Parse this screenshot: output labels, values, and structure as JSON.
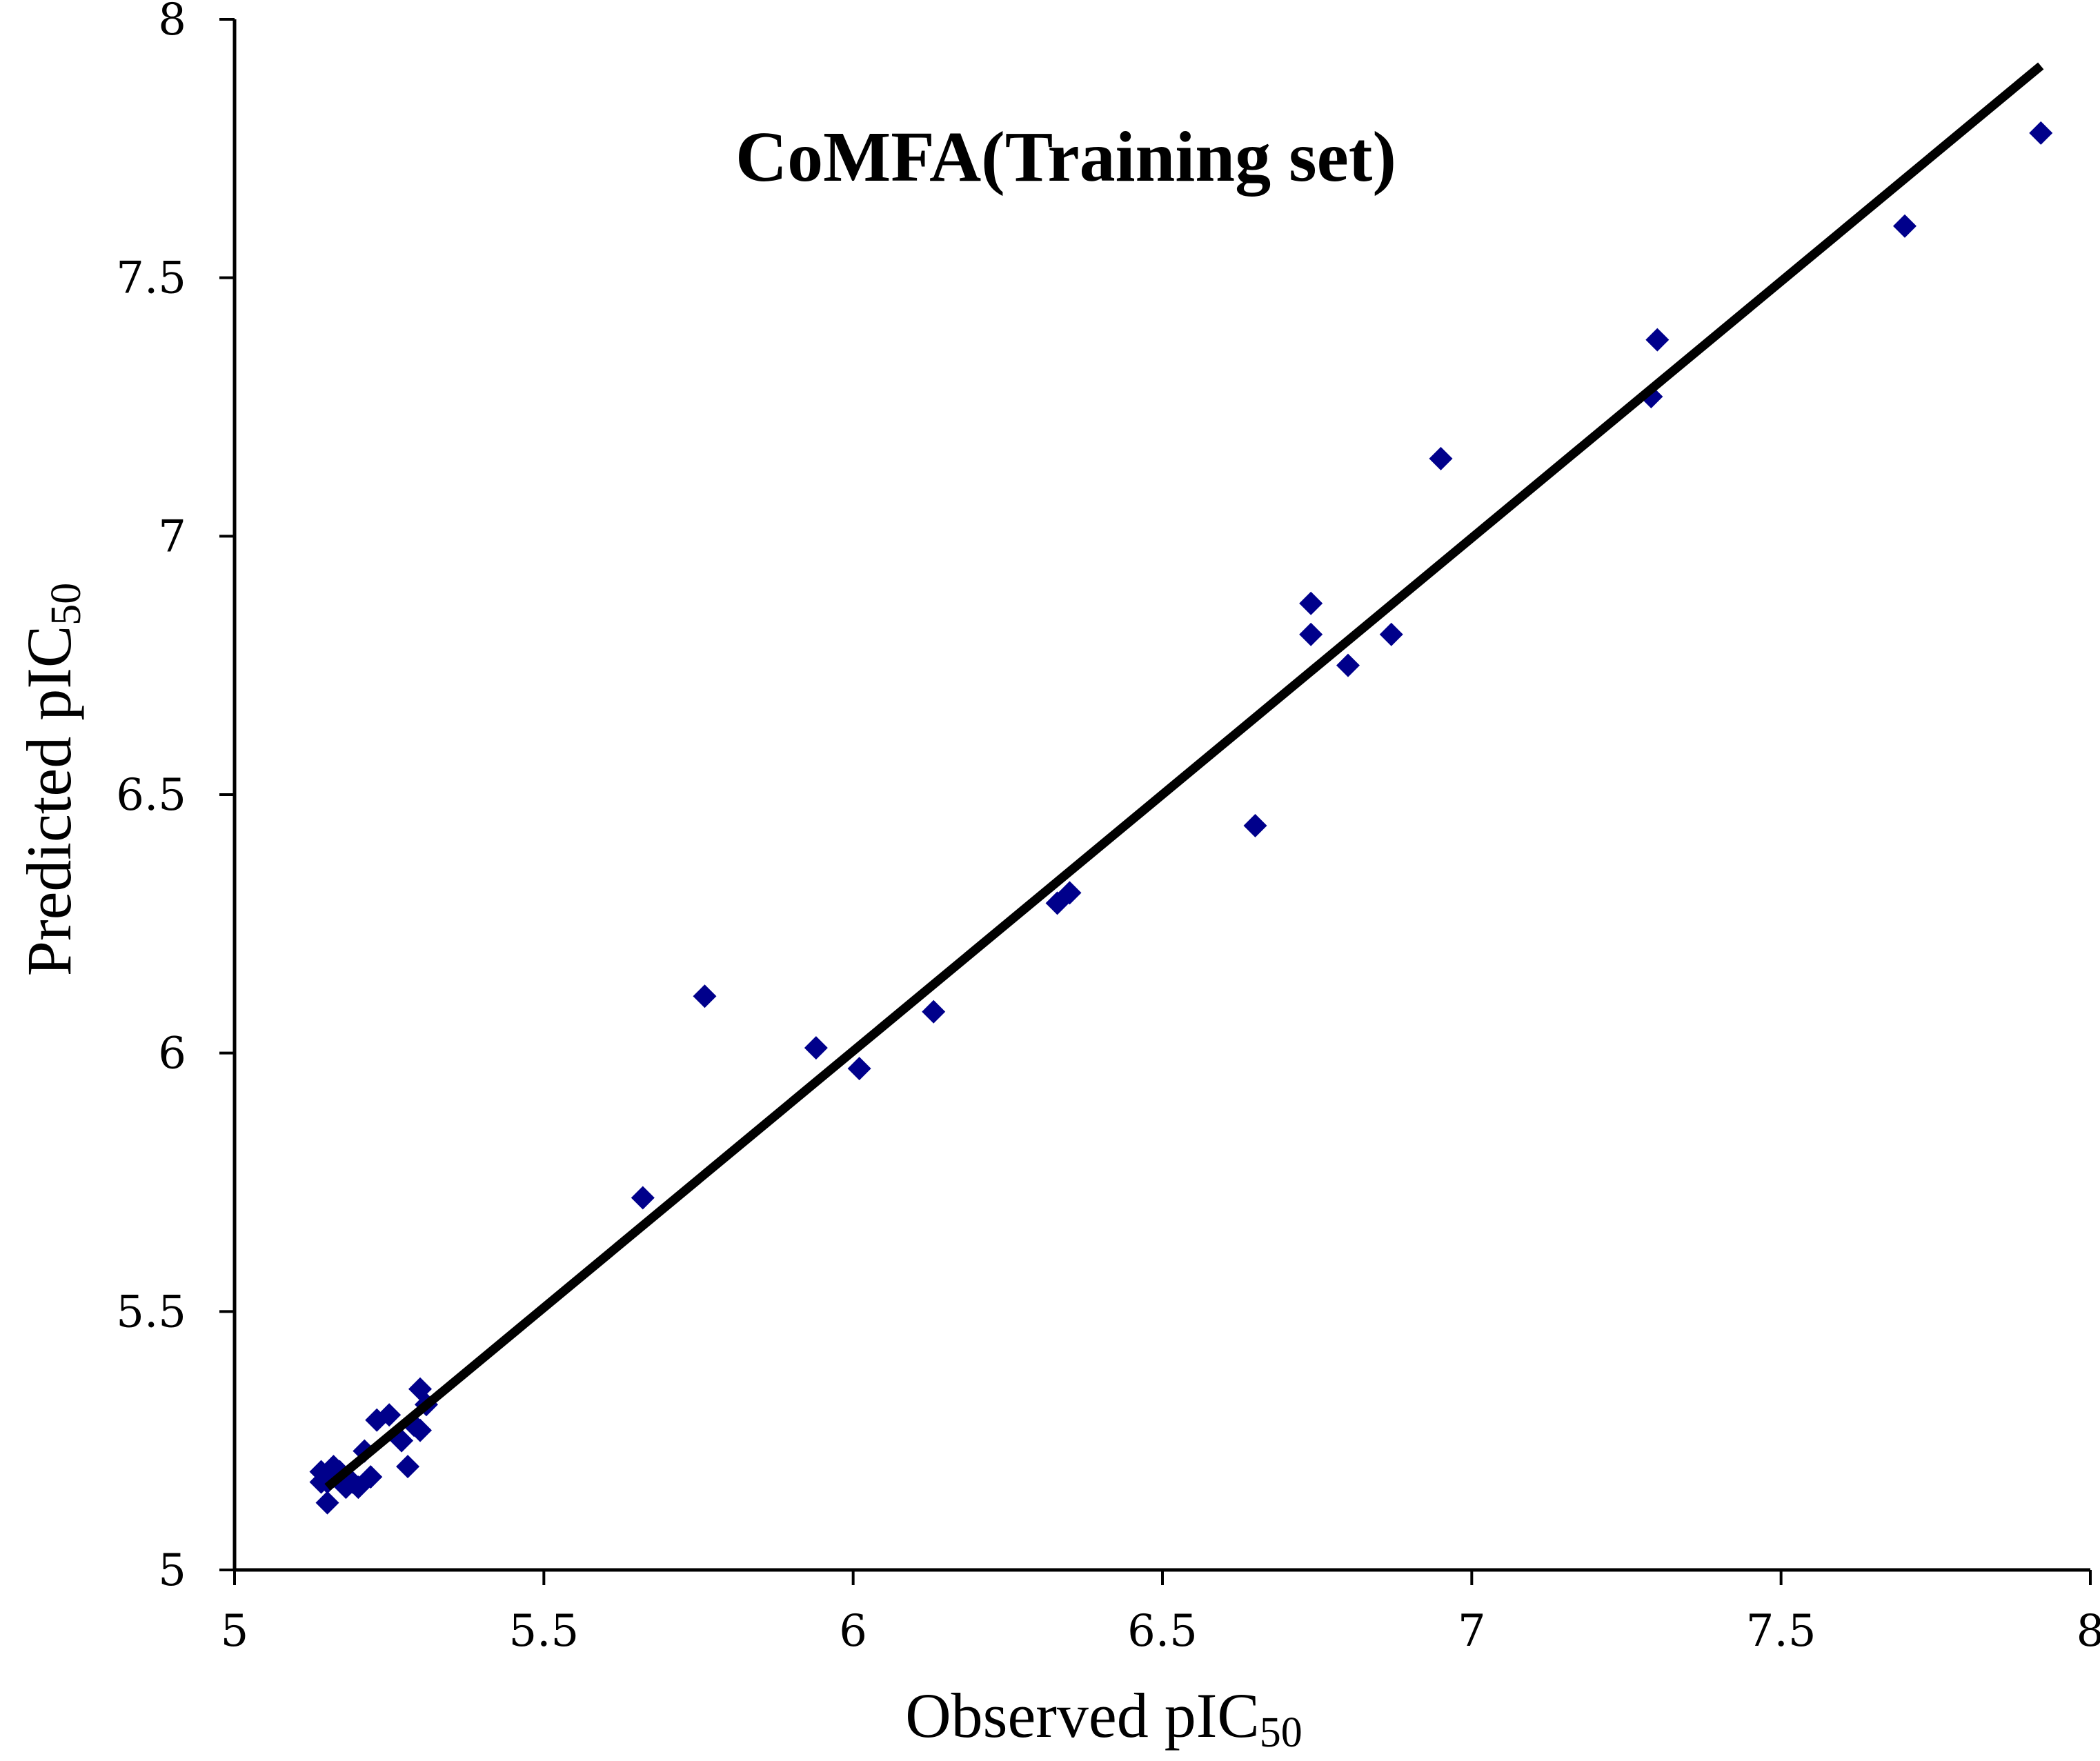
{
  "chart_data": {
    "type": "scatter",
    "title": "CoMFA(Training set)",
    "xlabel": "Observed pIC",
    "xlabel_sub": "50",
    "ylabel": "Predicted pIC",
    "ylabel_sub": "50",
    "xlim": [
      5,
      8
    ],
    "ylim": [
      5,
      8
    ],
    "x_ticks": [
      5,
      5.5,
      6,
      6.5,
      7,
      7.5,
      8
    ],
    "y_ticks": [
      5,
      5.5,
      6,
      6.5,
      7,
      7.5,
      8
    ],
    "x_tick_labels": [
      "5",
      "5.5",
      "6",
      "6.5",
      "7",
      "7.5",
      "8"
    ],
    "y_tick_labels": [
      "5",
      "5.5",
      "6",
      "6.5",
      "7",
      "7.5",
      "8"
    ],
    "grid": false,
    "marker": "diamond",
    "marker_color": "#00008B",
    "line_color": "#000000",
    "fit_line": {
      "x": [
        5.15,
        7.92
      ],
      "y": [
        5.16,
        7.91
      ]
    },
    "series": [
      {
        "name": "Training set",
        "points": [
          [
            5.14,
            5.19
          ],
          [
            5.14,
            5.17
          ],
          [
            5.15,
            5.17
          ],
          [
            5.15,
            5.13
          ],
          [
            5.16,
            5.2
          ],
          [
            5.17,
            5.19
          ],
          [
            5.18,
            5.16
          ],
          [
            5.19,
            5.17
          ],
          [
            5.2,
            5.16
          ],
          [
            5.21,
            5.23
          ],
          [
            5.22,
            5.18
          ],
          [
            5.23,
            5.29
          ],
          [
            5.25,
            5.3
          ],
          [
            5.27,
            5.25
          ],
          [
            5.28,
            5.2
          ],
          [
            5.29,
            5.28
          ],
          [
            5.3,
            5.27
          ],
          [
            5.3,
            5.35
          ],
          [
            5.31,
            5.32
          ],
          [
            5.66,
            5.72
          ],
          [
            5.76,
            6.11
          ],
          [
            5.94,
            6.01
          ],
          [
            6.01,
            5.97
          ],
          [
            6.13,
            6.08
          ],
          [
            6.33,
            6.29
          ],
          [
            6.35,
            6.31
          ],
          [
            6.65,
            6.44
          ],
          [
            6.74,
            6.87
          ],
          [
            6.74,
            6.81
          ],
          [
            6.8,
            6.75
          ],
          [
            6.87,
            6.81
          ],
          [
            6.95,
            7.15
          ],
          [
            7.29,
            7.27
          ],
          [
            7.3,
            7.38
          ],
          [
            7.7,
            7.6
          ],
          [
            7.92,
            7.78
          ]
        ]
      }
    ]
  }
}
